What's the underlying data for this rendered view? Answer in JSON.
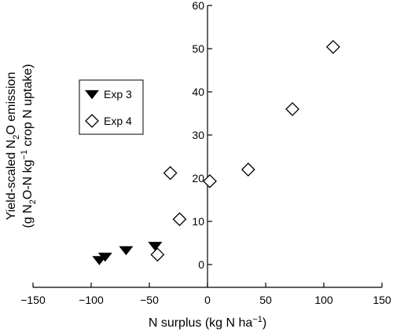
{
  "chart_data": {
    "type": "scatter",
    "title": "",
    "xlabel": {
      "prefix": "N surplus (kg N ha",
      "sup": "−1",
      "suffix": ")"
    },
    "ylabel": {
      "line1": {
        "prefix": "Yield-scaled N",
        "sub": "2",
        "suffix": "O emission"
      },
      "line2": {
        "prefix": "(g N",
        "sub": "2",
        "mid": "O-N kg",
        "sup": "−1",
        "suffix": " crop N uptake)"
      }
    },
    "xlim": [
      -150,
      150
    ],
    "ylim": [
      0,
      60
    ],
    "xticks": [
      -150,
      -100,
      -50,
      0,
      50,
      100,
      150
    ],
    "yticks": [
      0,
      10,
      20,
      30,
      40,
      50,
      60
    ],
    "x_tick_labels": [
      "−150",
      "−100",
      "−50",
      "0",
      "50",
      "100",
      "150"
    ],
    "y_tick_labels": [
      "0",
      "10",
      "20",
      "30",
      "40",
      "50",
      "60"
    ],
    "grid": false,
    "legend_position": "upper-left",
    "series": [
      {
        "name": "Exp 3",
        "marker": "triangle-down-filled",
        "color": "#000000",
        "points": [
          {
            "x": -93,
            "y": 1.2
          },
          {
            "x": -88,
            "y": 2.0
          },
          {
            "x": -70,
            "y": 3.5
          },
          {
            "x": -45,
            "y": 4.5
          }
        ]
      },
      {
        "name": "Exp 4",
        "marker": "diamond-open",
        "color": "#000000",
        "points": [
          {
            "x": -43,
            "y": 2.3
          },
          {
            "x": -32,
            "y": 21.2
          },
          {
            "x": -24,
            "y": 10.5
          },
          {
            "x": 2,
            "y": 19.3
          },
          {
            "x": 35,
            "y": 22.0
          },
          {
            "x": 73,
            "y": 36.0
          },
          {
            "x": 108,
            "y": 50.4
          }
        ]
      }
    ]
  }
}
